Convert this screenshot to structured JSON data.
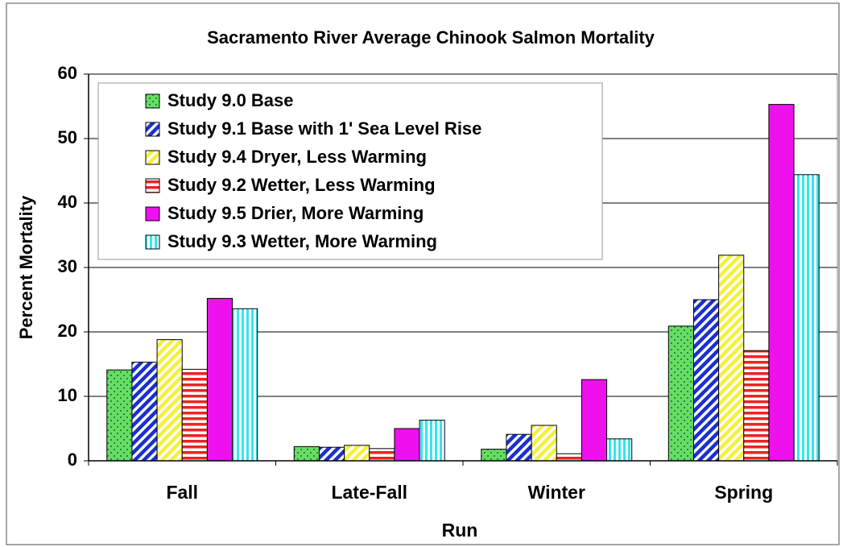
{
  "chart_data": {
    "type": "bar",
    "title": "Sacramento River Average Chinook Salmon Mortality",
    "x_label": "Run",
    "y_label": "Percent Mortality",
    "categories": [
      "Fall",
      "Late-Fall",
      "Winter",
      "Spring"
    ],
    "series": [
      {
        "name": "Study 9.0 Base",
        "color": "#66dd66",
        "pattern": "dots",
        "values": [
          14.1,
          2.2,
          1.8,
          20.9
        ]
      },
      {
        "name": "Study 9.1 Base with 1' Sea Level Rise",
        "color": "#1a2fd0",
        "pattern": "diagonal",
        "values": [
          15.3,
          2.1,
          4.1,
          25.0
        ]
      },
      {
        "name": "Study 9.4 Dryer, Less Warming",
        "color": "#f5f03a",
        "pattern": "diagonal",
        "values": [
          18.8,
          2.4,
          5.5,
          31.9
        ]
      },
      {
        "name": "Study 9.2 Wetter, Less Warming",
        "color": "#ee2222",
        "pattern": "horizontal",
        "values": [
          14.2,
          1.9,
          1.1,
          17.1
        ]
      },
      {
        "name": "Study 9.5 Drier, More Warming",
        "color": "#ee11ee",
        "pattern": "solid",
        "values": [
          25.2,
          5.0,
          12.6,
          55.3
        ]
      },
      {
        "name": "Study 9.3 Wetter, More Warming",
        "color": "#33e6ee",
        "pattern": "vertical",
        "values": [
          23.6,
          6.3,
          3.4,
          44.4
        ]
      }
    ],
    "ylim": [
      0,
      60
    ],
    "yticks": [
      0,
      10,
      20,
      30,
      40,
      50,
      60
    ],
    "grid": true,
    "legend": "upper left"
  }
}
